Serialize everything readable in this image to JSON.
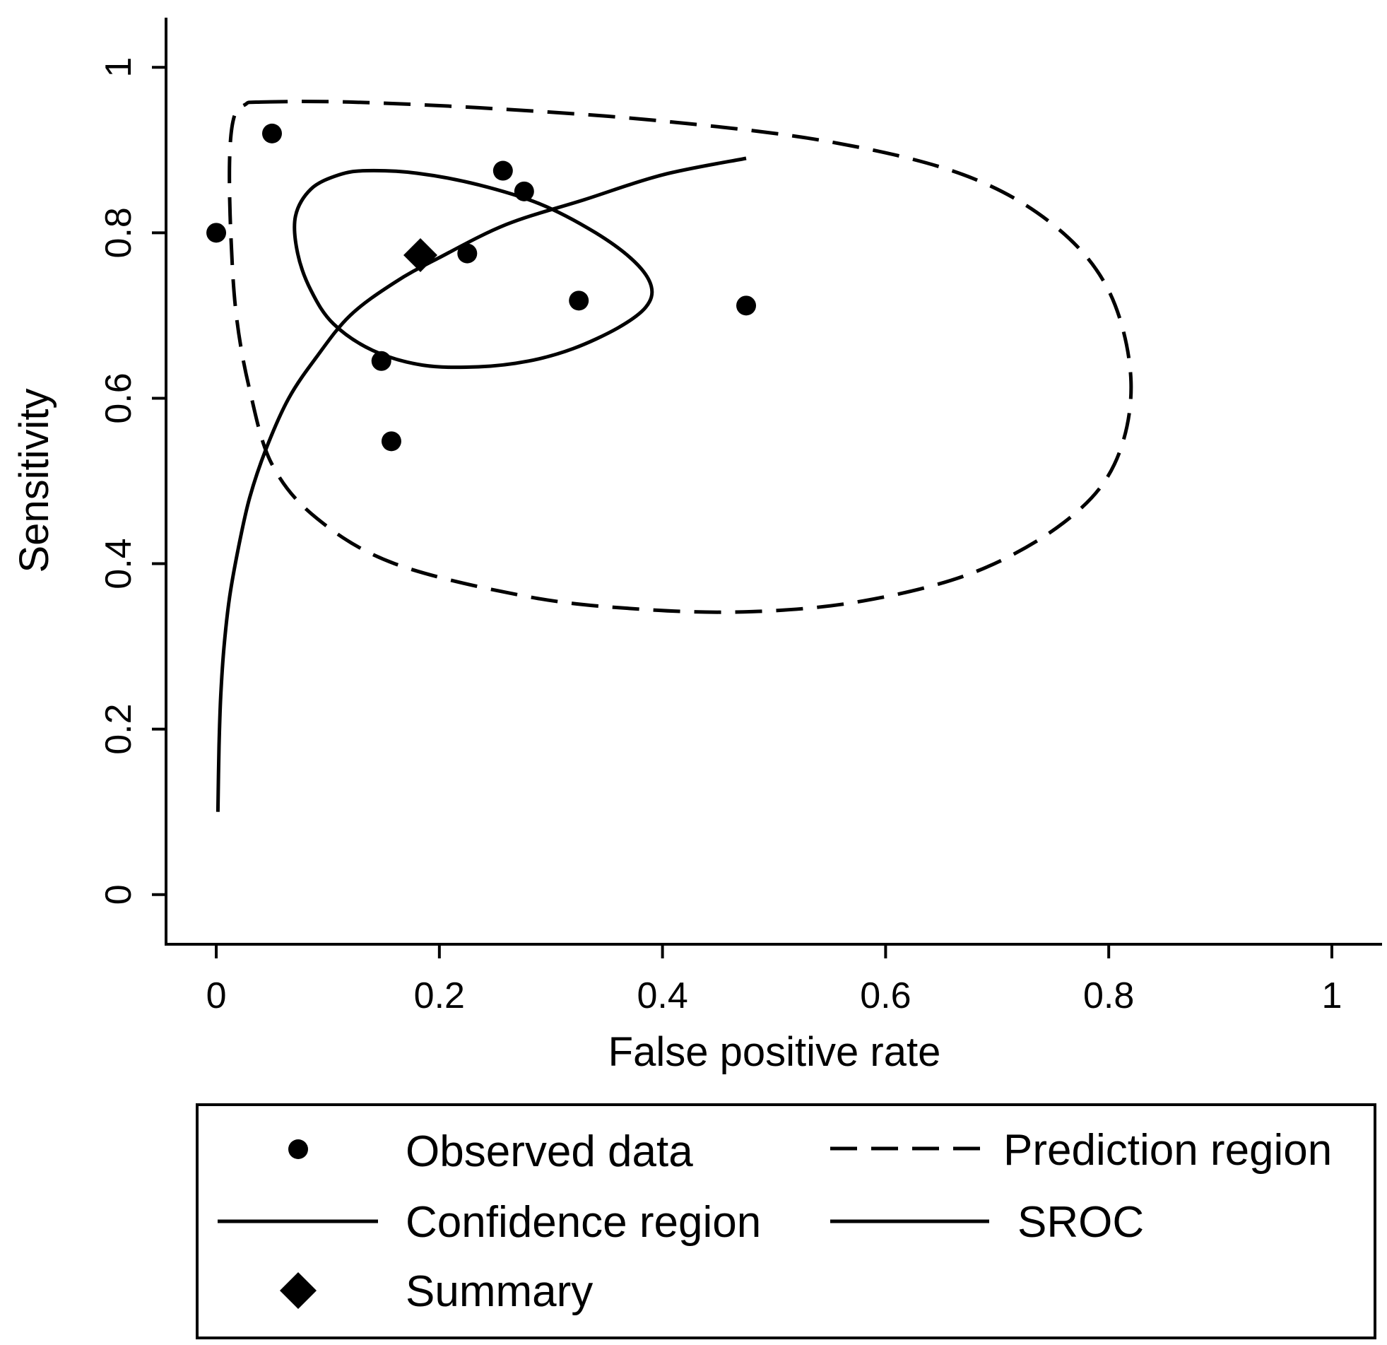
{
  "chart_data": {
    "type": "scatter",
    "xlabel": "False positive rate",
    "ylabel": "Sensitivity",
    "xlim": [
      -0.045,
      1.045
    ],
    "ylim": [
      -0.06,
      1.06
    ],
    "grid": false,
    "x_ticks": [
      0,
      0.2,
      0.4,
      0.6,
      0.8,
      1
    ],
    "x_tick_labels": [
      "0",
      "0.2",
      "0.4",
      "0.6",
      "0.8",
      "1"
    ],
    "y_ticks": [
      0,
      0.2,
      0.4,
      0.6,
      0.8,
      1
    ],
    "y_tick_labels": [
      "0",
      "0.2",
      "0.4",
      "0.6",
      "0.8",
      "1"
    ],
    "legend_position": "bottom",
    "observed": {
      "name": "Observed data",
      "points": [
        {
          "x": 0.0,
          "y": 0.8
        },
        {
          "x": 0.05,
          "y": 0.92
        },
        {
          "x": 0.148,
          "y": 0.645
        },
        {
          "x": 0.157,
          "y": 0.548
        },
        {
          "x": 0.225,
          "y": 0.775
        },
        {
          "x": 0.257,
          "y": 0.875
        },
        {
          "x": 0.276,
          "y": 0.85
        },
        {
          "x": 0.325,
          "y": 0.718
        },
        {
          "x": 0.475,
          "y": 0.712
        }
      ]
    },
    "summary": {
      "name": "Summary",
      "x": 0.183,
      "y": 0.773
    },
    "sroc": {
      "name": "SROC",
      "points": [
        [
          0.0015,
          0.1
        ],
        [
          0.0025,
          0.18
        ],
        [
          0.004,
          0.24
        ],
        [
          0.007,
          0.3
        ],
        [
          0.012,
          0.36
        ],
        [
          0.02,
          0.42
        ],
        [
          0.03,
          0.48
        ],
        [
          0.045,
          0.54
        ],
        [
          0.065,
          0.6
        ],
        [
          0.09,
          0.65
        ],
        [
          0.12,
          0.7
        ],
        [
          0.16,
          0.74
        ],
        [
          0.2,
          0.77
        ],
        [
          0.26,
          0.81
        ],
        [
          0.33,
          0.84
        ],
        [
          0.4,
          0.87
        ],
        [
          0.475,
          0.89
        ]
      ]
    },
    "confidence_region": {
      "name": "Confidence region",
      "points": [
        [
          0.135,
          0.875
        ],
        [
          0.18,
          0.872
        ],
        [
          0.235,
          0.858
        ],
        [
          0.29,
          0.835
        ],
        [
          0.34,
          0.8
        ],
        [
          0.375,
          0.765
        ],
        [
          0.39,
          0.735
        ],
        [
          0.385,
          0.71
        ],
        [
          0.36,
          0.685
        ],
        [
          0.32,
          0.66
        ],
        [
          0.28,
          0.645
        ],
        [
          0.235,
          0.638
        ],
        [
          0.185,
          0.64
        ],
        [
          0.14,
          0.658
        ],
        [
          0.105,
          0.69
        ],
        [
          0.085,
          0.73
        ],
        [
          0.073,
          0.775
        ],
        [
          0.071,
          0.82
        ],
        [
          0.085,
          0.853
        ],
        [
          0.11,
          0.87
        ]
      ]
    },
    "prediction_region": {
      "name": "Prediction region",
      "points": [
        [
          0.04,
          0.958
        ],
        [
          0.12,
          0.958
        ],
        [
          0.25,
          0.95
        ],
        [
          0.4,
          0.935
        ],
        [
          0.55,
          0.91
        ],
        [
          0.67,
          0.87
        ],
        [
          0.75,
          0.81
        ],
        [
          0.8,
          0.73
        ],
        [
          0.82,
          0.62
        ],
        [
          0.805,
          0.52
        ],
        [
          0.76,
          0.45
        ],
        [
          0.68,
          0.39
        ],
        [
          0.58,
          0.355
        ],
        [
          0.48,
          0.342
        ],
        [
          0.38,
          0.345
        ],
        [
          0.28,
          0.36
        ],
        [
          0.16,
          0.4
        ],
        [
          0.09,
          0.455
        ],
        [
          0.05,
          0.52
        ],
        [
          0.03,
          0.61
        ],
        [
          0.018,
          0.7
        ],
        [
          0.013,
          0.8
        ],
        [
          0.012,
          0.89
        ],
        [
          0.016,
          0.94
        ],
        [
          0.026,
          0.955
        ]
      ]
    },
    "legend": [
      {
        "key": "observed",
        "label": "Observed data"
      },
      {
        "key": "prediction_region",
        "label": "Prediction region"
      },
      {
        "key": "confidence_region",
        "label": "Confidence region"
      },
      {
        "key": "sroc",
        "label": "SROC"
      },
      {
        "key": "summary",
        "label": "Summary"
      }
    ]
  }
}
